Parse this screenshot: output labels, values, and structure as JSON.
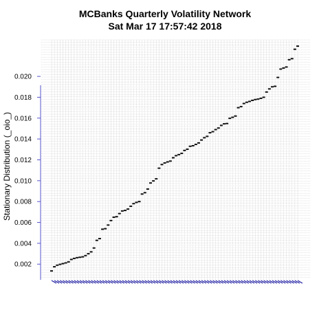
{
  "chart_data": {
    "type": "scatter",
    "title": "MCBanks  Quarterly Volatility Network",
    "subtitle": "Sat Mar 17 17:57:42 2018",
    "xlabel": "",
    "ylabel": "Stationary Distribution (_oio_)",
    "ylim": [
      0.0005,
      0.0235
    ],
    "yticks": [
      "0.002",
      "0.004",
      "0.006",
      "0.008",
      "0.010",
      "0.012",
      "0.014",
      "0.016",
      "0.018",
      "0.020"
    ],
    "grid": true,
    "values": [
      0.00135,
      0.00175,
      0.0019,
      0.00198,
      0.00205,
      0.00212,
      0.00222,
      0.00245,
      0.00255,
      0.00262,
      0.00266,
      0.0027,
      0.00282,
      0.003,
      0.00318,
      0.00355,
      0.00428,
      0.00445,
      0.00535,
      0.0054,
      0.00575,
      0.00618,
      0.0065,
      0.00655,
      0.00685,
      0.0071,
      0.00715,
      0.00728,
      0.00755,
      0.0078,
      0.00792,
      0.008,
      0.00872,
      0.00885,
      0.0092,
      0.00978,
      0.00998,
      0.01018,
      0.0112,
      0.01155,
      0.0117,
      0.0118,
      0.01188,
      0.0122,
      0.0124,
      0.0125,
      0.01262,
      0.0129,
      0.01302,
      0.0133,
      0.01335,
      0.01348,
      0.01362,
      0.0139,
      0.01412,
      0.01425,
      0.0146,
      0.0147,
      0.0149,
      0.01505,
      0.0153,
      0.01545,
      0.01548,
      0.01598,
      0.01608,
      0.0162,
      0.017,
      0.0171,
      0.0174,
      0.01752,
      0.0176,
      0.0177,
      0.01778,
      0.01782,
      0.0179,
      0.018,
      0.0185,
      0.0188,
      0.019,
      0.01905,
      0.0199,
      0.0207,
      0.0208,
      0.0209,
      0.0216,
      0.0217,
      0.0226,
      0.0229
    ]
  }
}
